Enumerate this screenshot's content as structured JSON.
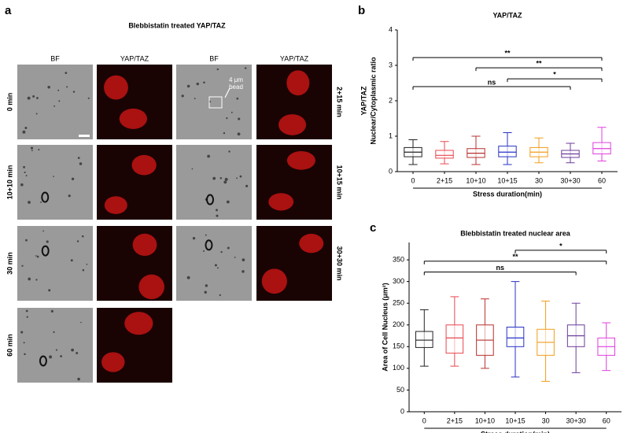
{
  "panel_a": {
    "letter": "a",
    "title": "Blebbistatin treated YAP/TAZ",
    "columns": [
      "BF",
      "YAP/TAZ",
      "BF",
      "YAP/TAZ"
    ],
    "left_rows": [
      "0 min",
      "10+10 min",
      "30 min",
      "60 min"
    ],
    "right_rows": [
      "2+15 min",
      "10+15 min",
      "30+30 min"
    ],
    "annotation": [
      "4 μm",
      "bead"
    ]
  },
  "chart_data": [
    {
      "type": "box",
      "letter": "b",
      "title": "YAP/TAZ",
      "ylabel": [
        "YAP/TAZ",
        "Nuclear/Cytoplasmic ratio"
      ],
      "xlabel": "Stress duration(min)",
      "categories": [
        "0",
        "2+15",
        "10+10",
        "10+15",
        "30",
        "30+30",
        "60"
      ],
      "colors": [
        "#222222",
        "#e8474f",
        "#b8312f",
        "#2633c4",
        "#f29d1c",
        "#6b3b9a",
        "#e03fe0"
      ],
      "boxes": [
        {
          "min": 0.2,
          "q1": 0.42,
          "median": 0.55,
          "q3": 0.68,
          "max": 0.9
        },
        {
          "min": 0.22,
          "q1": 0.38,
          "median": 0.46,
          "q3": 0.6,
          "max": 0.85
        },
        {
          "min": 0.2,
          "q1": 0.4,
          "median": 0.52,
          "q3": 0.65,
          "max": 1.0
        },
        {
          "min": 0.2,
          "q1": 0.42,
          "median": 0.55,
          "q3": 0.72,
          "max": 1.1
        },
        {
          "min": 0.25,
          "q1": 0.42,
          "median": 0.55,
          "q3": 0.68,
          "max": 0.95
        },
        {
          "min": 0.25,
          "q1": 0.4,
          "median": 0.5,
          "q3": 0.6,
          "max": 0.8
        },
        {
          "min": 0.3,
          "q1": 0.5,
          "median": 0.65,
          "q3": 0.82,
          "max": 1.25
        }
      ],
      "brackets": [
        {
          "label": "**",
          "y": 3.22,
          "from": "0",
          "to": "60"
        },
        {
          "label": "**",
          "y": 2.93,
          "from": "10+10",
          "to": "60"
        },
        {
          "label": "*",
          "y": 2.62,
          "from": "10+15",
          "to": "60"
        },
        {
          "label": "ns",
          "y": 2.4,
          "from": "0",
          "to": "30+30"
        }
      ],
      "ylim": [
        0,
        4
      ],
      "yticks": [
        0,
        1,
        2,
        3,
        4
      ]
    },
    {
      "type": "box",
      "letter": "c",
      "title": "Blebbistatin treated nuclear area",
      "ylabel": [
        "Area of Cell Nucleus (μm²)"
      ],
      "xlabel": "Stress duration(min)",
      "categories": [
        "0",
        "2+15",
        "10+10",
        "10+15",
        "30",
        "30+30",
        "60"
      ],
      "colors": [
        "#222222",
        "#e8474f",
        "#b8312f",
        "#2633c4",
        "#f29d1c",
        "#6b3b9a",
        "#e03fe0"
      ],
      "boxes": [
        {
          "min": 105,
          "q1": 148,
          "median": 165,
          "q3": 185,
          "max": 235
        },
        {
          "min": 105,
          "q1": 135,
          "median": 170,
          "q3": 200,
          "max": 265
        },
        {
          "min": 100,
          "q1": 130,
          "median": 165,
          "q3": 200,
          "max": 260
        },
        {
          "min": 80,
          "q1": 150,
          "median": 170,
          "q3": 195,
          "max": 300
        },
        {
          "min": 70,
          "q1": 130,
          "median": 160,
          "q3": 190,
          "max": 255
        },
        {
          "min": 90,
          "q1": 150,
          "median": 175,
          "q3": 200,
          "max": 250
        },
        {
          "min": 95,
          "q1": 130,
          "median": 150,
          "q3": 170,
          "max": 205
        }
      ],
      "brackets": [
        {
          "label": "*",
          "y": 372,
          "from": "10+15",
          "to": "60"
        },
        {
          "label": "**",
          "y": 347,
          "from": "0",
          "to": "60"
        },
        {
          "label": "ns",
          "y": 322,
          "from": "0",
          "to": "30+30"
        }
      ],
      "ylim": [
        0,
        390
      ],
      "yticks": [
        0,
        50,
        100,
        150,
        200,
        250,
        300,
        350
      ]
    }
  ]
}
